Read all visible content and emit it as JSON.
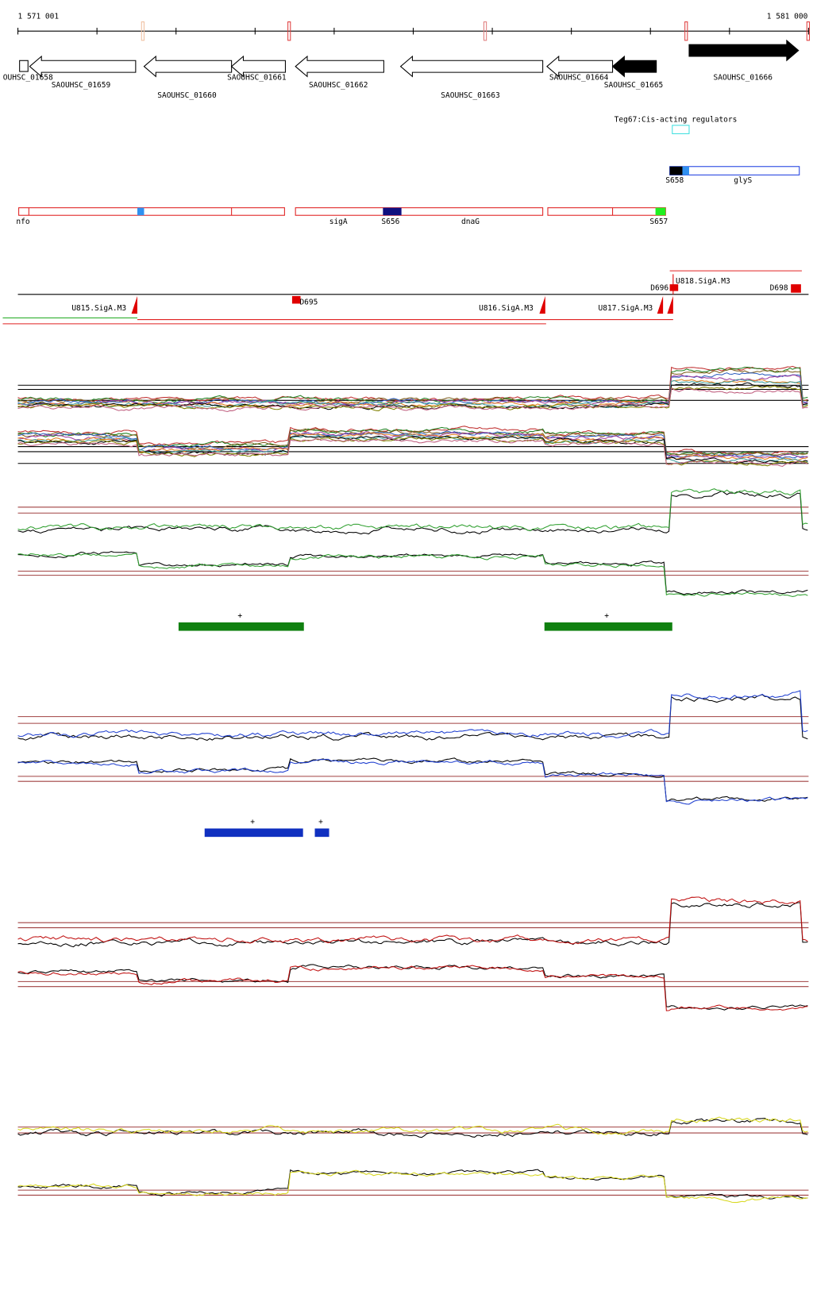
{
  "ruler": {
    "start": "1 571 001",
    "end": "1 581 000"
  },
  "genes": [
    "OUHSC_01658",
    "SAOUHSC_01659",
    "SAOUHSC_01660",
    "SAOUHSC_01661",
    "SAOUHSC_01662",
    "SAOUHSC_01663",
    "SAOUHSC_01664",
    "SAOUHSC_01665",
    "SAOUHSC_01666"
  ],
  "regulator": "Teg67:Cis-acting regulators",
  "segments": [
    "S658",
    "glyS",
    "nfo",
    "sigA",
    "S656",
    "dnaG",
    "S657"
  ],
  "sites": [
    "D696",
    "U818.SigA.M3",
    "D698",
    "U815.SigA.M3",
    "D695",
    "U816.SigA.M3",
    "U817.SigA.M3"
  ],
  "plus_marks": [
    "+",
    "+",
    "+",
    "+"
  ]
}
